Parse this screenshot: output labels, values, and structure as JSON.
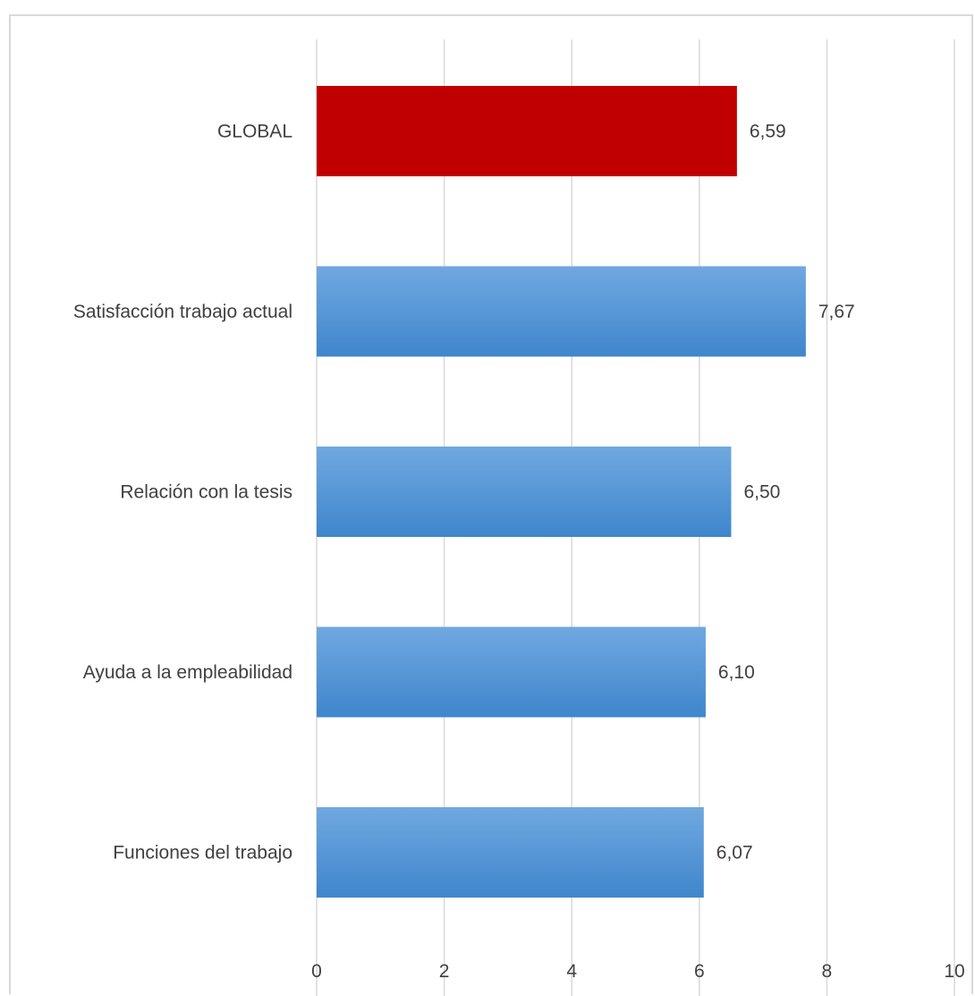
{
  "chart_data": {
    "type": "bar",
    "orientation": "horizontal",
    "categories": [
      "GLOBAL",
      "Satisfacción trabajo actual",
      "Relación con la tesis",
      "Ayuda a la empleabilidad",
      "Funciones del trabajo"
    ],
    "values": [
      6.59,
      7.67,
      6.5,
      6.1,
      6.07
    ],
    "value_labels": [
      "6,59",
      "7,67",
      "6,50",
      "6,10",
      "6,07"
    ],
    "xlim": [
      0,
      10
    ],
    "xticks": [
      0,
      2,
      4,
      6,
      8,
      10
    ],
    "xtick_labels": [
      "0",
      "2",
      "4",
      "6",
      "8",
      "10"
    ],
    "grid": "vertical",
    "legend": "none",
    "colors": {
      "highlight": "#c00000",
      "bar_top": "#70a8e0",
      "bar_bottom": "#3f86cc",
      "grid": "#d9d9d9",
      "text": "#404040"
    },
    "highlight_index": 0
  }
}
